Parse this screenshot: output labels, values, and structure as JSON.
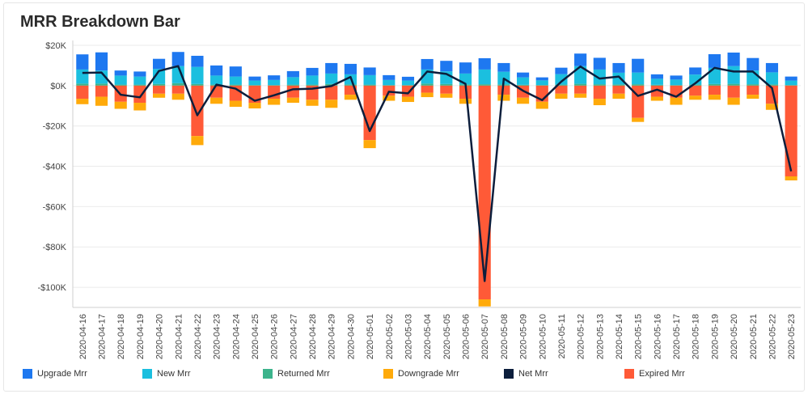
{
  "chart_data": {
    "type": "bar",
    "title": "MRR Breakdown Bar",
    "categories": [
      "2020-04-16",
      "2020-04-17",
      "2020-04-18",
      "2020-04-19",
      "2020-04-20",
      "2020-04-21",
      "2020-04-22",
      "2020-04-23",
      "2020-04-24",
      "2020-04-25",
      "2020-04-26",
      "2020-04-27",
      "2020-04-28",
      "2020-04-29",
      "2020-04-30",
      "2020-05-01",
      "2020-05-02",
      "2020-05-03",
      "2020-05-04",
      "2020-05-05",
      "2020-05-06",
      "2020-05-07",
      "2020-05-08",
      "2020-05-09",
      "2020-05-10",
      "2020-05-11",
      "2020-05-12",
      "2020-05-13",
      "2020-05-14",
      "2020-05-15",
      "2020-05-16",
      "2020-05-17",
      "2020-05-18",
      "2020-05-19",
      "2020-05-20",
      "2020-05-21",
      "2020-05-22",
      "2020-05-23"
    ],
    "ylim": [
      -110000,
      20000
    ],
    "yticks": [
      {
        "value": 20000,
        "label": "$20K"
      },
      {
        "value": 0,
        "label": "$0K"
      },
      {
        "value": -20000,
        "label": "-$20K"
      },
      {
        "value": -40000,
        "label": "-$40K"
      },
      {
        "value": -60000,
        "label": "-$60K"
      },
      {
        "value": -80000,
        "label": "-$80K"
      },
      {
        "value": -100000,
        "label": "-$100K"
      }
    ],
    "series": [
      {
        "name": "Returned Mrr",
        "key": "returned",
        "color": "#3cb48c",
        "stack": "pos",
        "values": [
          1000,
          1000,
          500,
          500,
          800,
          1200,
          800,
          500,
          500,
          300,
          300,
          500,
          500,
          800,
          600,
          500,
          300,
          300,
          1000,
          800,
          600,
          700,
          600,
          400,
          300,
          500,
          900,
          700,
          600,
          700,
          400,
          300,
          500,
          800,
          900,
          700,
          600,
          300
        ]
      },
      {
        "name": "New Mrr",
        "key": "new",
        "color": "#1bbfdf",
        "stack": "pos",
        "values": [
          7000,
          6500,
          4500,
          4000,
          7500,
          8500,
          8500,
          4500,
          4000,
          2200,
          2500,
          3700,
          4500,
          5200,
          5000,
          4700,
          2500,
          2200,
          7000,
          6300,
          5400,
          7300,
          6300,
          3700,
          2300,
          5200,
          8800,
          7300,
          5800,
          5800,
          3000,
          2700,
          5000,
          8000,
          8800,
          6800,
          6000,
          2200
        ]
      },
      {
        "name": "Upgrade Mrr",
        "key": "upgrade",
        "color": "#1e78f0",
        "stack": "pos",
        "values": [
          7500,
          9000,
          2500,
          2500,
          5000,
          7000,
          5500,
          5000,
          5000,
          2000,
          2300,
          3000,
          3800,
          5200,
          5200,
          3800,
          2400,
          1900,
          5200,
          5200,
          5500,
          5600,
          4300,
          2400,
          1500,
          3200,
          6200,
          5800,
          4800,
          6800,
          2200,
          2000,
          3500,
          6800,
          6700,
          6200,
          4600,
          2000
        ]
      },
      {
        "name": "Expired Mrr",
        "key": "expired",
        "color": "#ff5a37",
        "stack": "neg",
        "values": [
          -6500,
          -5500,
          -8000,
          -8500,
          -4000,
          -4000,
          -25000,
          -6000,
          -7500,
          -8500,
          -6500,
          -6000,
          -7000,
          -7000,
          -4500,
          -27000,
          -5000,
          -5500,
          -3500,
          -4000,
          -6500,
          -106000,
          -4500,
          -6000,
          -8000,
          -4000,
          -4000,
          -6500,
          -4000,
          -16000,
          -5500,
          -6000,
          -5000,
          -4500,
          -6000,
          -4500,
          -9000,
          -45000
        ]
      },
      {
        "name": "Downgrade Mrr",
        "key": "downgrade",
        "color": "#ffaa0a",
        "stack": "neg",
        "values": [
          -2700,
          -4500,
          -3500,
          -3800,
          -2000,
          -3000,
          -4500,
          -3000,
          -3000,
          -2800,
          -3000,
          -2500,
          -3000,
          -4000,
          -2500,
          -4000,
          -2500,
          -2600,
          -2200,
          -2000,
          -2500,
          -3500,
          -3000,
          -3000,
          -3500,
          -2500,
          -2000,
          -3200,
          -2500,
          -2000,
          -2000,
          -3500,
          -2000,
          -2500,
          -3500,
          -2000,
          -3000,
          -2000
        ]
      },
      {
        "name": "Net Mrr",
        "key": "net",
        "color": "#0c1e3c",
        "type": "line",
        "values": [
          6300,
          6500,
          -4500,
          -5800,
          7300,
          9700,
          -14700,
          500,
          -1500,
          -7500,
          -4800,
          -1800,
          -1500,
          -200,
          4300,
          -22500,
          -3000,
          -3800,
          7000,
          5800,
          900,
          -96900,
          3500,
          -2500,
          -7200,
          2000,
          9500,
          3500,
          4500,
          -5100,
          -2000,
          -5500,
          1200,
          8800,
          7000,
          7000,
          -1200,
          -42500
        ]
      }
    ],
    "legend": {
      "position": "bottom"
    }
  }
}
